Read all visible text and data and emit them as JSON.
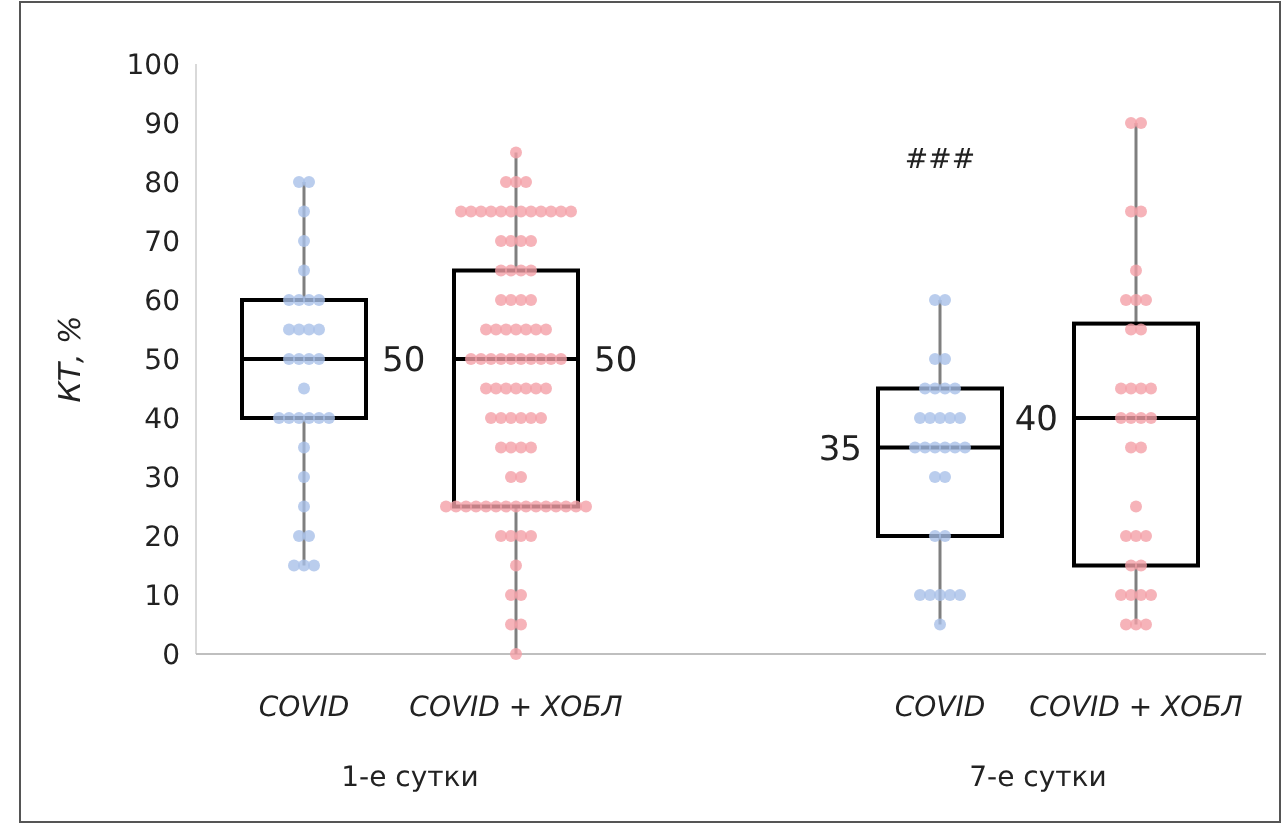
{
  "chart_data": [
    {
      "type": "box",
      "xlabel": "1-е сутки",
      "ylabel": "КТ, %",
      "categories": [
        "COVID",
        "COVID + ХОБЛ"
      ],
      "ylim": [
        0,
        100
      ],
      "yticks": [
        0,
        10,
        20,
        30,
        40,
        50,
        60,
        70,
        80,
        90,
        100
      ],
      "grid": false,
      "series": [
        {
          "color": "#000000",
          "value_labels": [
            "50",
            "50"
          ],
          "boxes": [
            {
              "low": 15,
              "q1": 40,
              "median": 50,
              "q3": 60,
              "high": 80
            },
            {
              "low": 0,
              "q1": 25,
              "median": 50,
              "q3": 65,
              "high": 85
            }
          ]
        },
        {
          "type": "scatter",
          "color": "#a9c0e8",
          "x": [
            "COVID",
            "COVID",
            "COVID",
            "COVID",
            "COVID",
            "COVID",
            "COVID",
            "COVID",
            "COVID",
            "COVID",
            "COVID",
            "COVID",
            "COVID",
            "COVID",
            "COVID",
            "COVID",
            "COVID",
            "COVID",
            "COVID",
            "COVID",
            "COVID",
            "COVID",
            "COVID",
            "COVID",
            "COVID",
            "COVID",
            "COVID",
            "COVID",
            "COVID",
            "COVID",
            "COVID",
            "COVID"
          ],
          "values": [
            80,
            80,
            75,
            70,
            65,
            60,
            60,
            60,
            60,
            55,
            55,
            55,
            55,
            50,
            50,
            50,
            50,
            45,
            40,
            40,
            40,
            40,
            40,
            40,
            35,
            30,
            25,
            20,
            20,
            15,
            15,
            15
          ]
        },
        {
          "type": "scatter",
          "color": "#f4a0a8",
          "x": [
            "COVID + ХОБЛ",
            "COVID + ХОБЛ",
            "COVID + ХОБЛ",
            "COVID + ХОБЛ",
            "COVID + ХОБЛ",
            "COVID + ХОБЛ",
            "COVID + ХОБЛ",
            "COVID + ХОБЛ",
            "COVID + ХОБЛ",
            "COVID + ХОБЛ",
            "COVID + ХОБЛ",
            "COVID + ХОБЛ",
            "COVID + ХОБЛ",
            "COVID + ХОБЛ",
            "COVID + ХОБЛ",
            "COVID + ХОБЛ",
            "COVID + ХОБЛ",
            "COVID + ХОБЛ",
            "COVID + ХОБЛ",
            "COVID + ХОБЛ",
            "COVID + ХОБЛ",
            "COVID + ХОБЛ",
            "COVID + ХОБЛ",
            "COVID + ХОБЛ",
            "COVID + ХОБЛ",
            "COVID + ХОБЛ",
            "COVID + ХОБЛ",
            "COVID + ХОБЛ",
            "COVID + ХОБЛ",
            "COVID + ХОБЛ",
            "COVID + ХОБЛ",
            "COVID + ХОБЛ",
            "COVID + ХОБЛ",
            "COVID + ХОБЛ",
            "COVID + ХОБЛ",
            "COVID + ХОБЛ",
            "COVID + ХОБЛ",
            "COVID + ХОБЛ",
            "COVID + ХОБЛ",
            "COVID + ХОБЛ",
            "COVID + ХОБЛ",
            "COVID + ХОБЛ",
            "COVID + ХОБЛ",
            "COVID + ХОБЛ",
            "COVID + ХОБЛ",
            "COVID + ХОБЛ",
            "COVID + ХОБЛ",
            "COVID + ХОБЛ",
            "COVID + ХОБЛ",
            "COVID + ХОБЛ",
            "COVID + ХОБЛ",
            "COVID + ХОБЛ",
            "COVID + ХОБЛ",
            "COVID + ХОБЛ",
            "COVID + ХОБЛ",
            "COVID + ХОБЛ",
            "COVID + ХОБЛ",
            "COVID + ХОБЛ",
            "COVID + ХОБЛ",
            "COVID + ХОБЛ",
            "COVID + ХОБЛ",
            "COVID + ХОБЛ",
            "COVID + ХОБЛ",
            "COVID + ХОБЛ",
            "COVID + ХОБЛ",
            "COVID + ХОБЛ",
            "COVID + ХОБЛ",
            "COVID + ХОБЛ",
            "COVID + ХОБЛ",
            "COVID + ХОБЛ",
            "COVID + ХОБЛ",
            "COVID + ХОБЛ",
            "COVID + ХОБЛ",
            "COVID + ХОБЛ",
            "COVID + ХОБЛ",
            "COVID + ХОБЛ",
            "COVID + ХОБЛ",
            "COVID + ХОБЛ",
            "COVID + ХОБЛ",
            "COVID + ХОБЛ",
            "COVID + ХОБЛ",
            "COVID + ХОБЛ",
            "COVID + ХОБЛ",
            "COVID + ХОБЛ",
            "COVID + ХОБЛ",
            "COVID + ХОБЛ",
            "COVID + ХОБЛ",
            "COVID + ХОБЛ",
            "COVID + ХОБЛ"
          ],
          "values": [
            85,
            80,
            80,
            80,
            75,
            75,
            75,
            75,
            75,
            75,
            75,
            75,
            75,
            75,
            75,
            75,
            70,
            70,
            70,
            70,
            65,
            65,
            65,
            65,
            60,
            60,
            60,
            60,
            55,
            55,
            55,
            55,
            55,
            55,
            55,
            50,
            50,
            50,
            50,
            50,
            50,
            50,
            50,
            50,
            50,
            45,
            45,
            45,
            45,
            45,
            45,
            45,
            40,
            40,
            40,
            40,
            40,
            40,
            35,
            35,
            35,
            35,
            30,
            30,
            25,
            25,
            25,
            25,
            25,
            25,
            25,
            25,
            25,
            25,
            25,
            25,
            25,
            25,
            25,
            20,
            20,
            20,
            20,
            15,
            10,
            10,
            5,
            5,
            0
          ]
        }
      ]
    },
    {
      "type": "box",
      "xlabel": "7-е сутки",
      "categories": [
        "COVID",
        "COVID + ХОБЛ"
      ],
      "ylim": [
        0,
        100
      ],
      "yticks": [
        0,
        10,
        20,
        30,
        40,
        50,
        60,
        70,
        80,
        90,
        100
      ],
      "tick_labels": "x",
      "grid": false,
      "annotations": [
        "###"
      ],
      "series": [
        {
          "color": "#000000",
          "value_labels": [
            "35",
            "40"
          ],
          "boxes": [
            {
              "low": 5,
              "q1": 20,
              "median": 35,
              "q3": 45,
              "high": 60
            },
            {
              "low": 5,
              "q1": 15,
              "median": 40,
              "q3": 56,
              "high": 90
            }
          ]
        },
        {
          "type": "scatter",
          "color": "#a9c0e8",
          "x": [
            "COVID",
            "COVID",
            "COVID",
            "COVID",
            "COVID",
            "COVID",
            "COVID",
            "COVID",
            "COVID",
            "COVID",
            "COVID",
            "COVID",
            "COVID",
            "COVID",
            "COVID",
            "COVID",
            "COVID",
            "COVID",
            "COVID",
            "COVID",
            "COVID",
            "COVID",
            "COVID",
            "COVID",
            "COVID",
            "COVID",
            "COVID",
            "COVID",
            "COVID"
          ],
          "values": [
            60,
            60,
            50,
            50,
            45,
            45,
            45,
            45,
            40,
            40,
            40,
            40,
            40,
            35,
            35,
            35,
            35,
            35,
            35,
            30,
            30,
            20,
            20,
            10,
            10,
            10,
            10,
            10,
            5
          ]
        },
        {
          "type": "scatter",
          "color": "#f4a0a8",
          "x": [
            "COVID + ХОБЛ",
            "COVID + ХОБЛ",
            "COVID + ХОБЛ",
            "COVID + ХОБЛ",
            "COVID + ХОБЛ",
            "COVID + ХОБЛ",
            "COVID + ХОБЛ",
            "COVID + ХОБЛ",
            "COVID + ХОБЛ",
            "COVID + ХОБЛ",
            "COVID + ХОБЛ",
            "COVID + ХОБЛ",
            "COVID + ХОБЛ",
            "COVID + ХОБЛ",
            "COVID + ХОБЛ",
            "COVID + ХОБЛ",
            "COVID + ХОБЛ",
            "COVID + ХОБЛ",
            "COVID + ХОБЛ",
            "COVID + ХОБЛ",
            "COVID + ХОБЛ",
            "COVID + ХОБЛ",
            "COVID + ХОБЛ",
            "COVID + ХОБЛ",
            "COVID + ХОБЛ",
            "COVID + ХОБЛ",
            "COVID + ХОБЛ",
            "COVID + ХОБЛ",
            "COVID + ХОБЛ",
            "COVID + ХОБЛ",
            "COVID + ХОБЛ",
            "COVID + ХОБЛ",
            "COVID + ХОБЛ"
          ],
          "values": [
            90,
            90,
            75,
            75,
            65,
            60,
            60,
            60,
            55,
            55,
            45,
            45,
            45,
            45,
            40,
            40,
            40,
            40,
            35,
            35,
            25,
            20,
            20,
            20,
            15,
            15,
            10,
            10,
            10,
            10,
            5,
            5,
            5
          ]
        }
      ]
    }
  ]
}
